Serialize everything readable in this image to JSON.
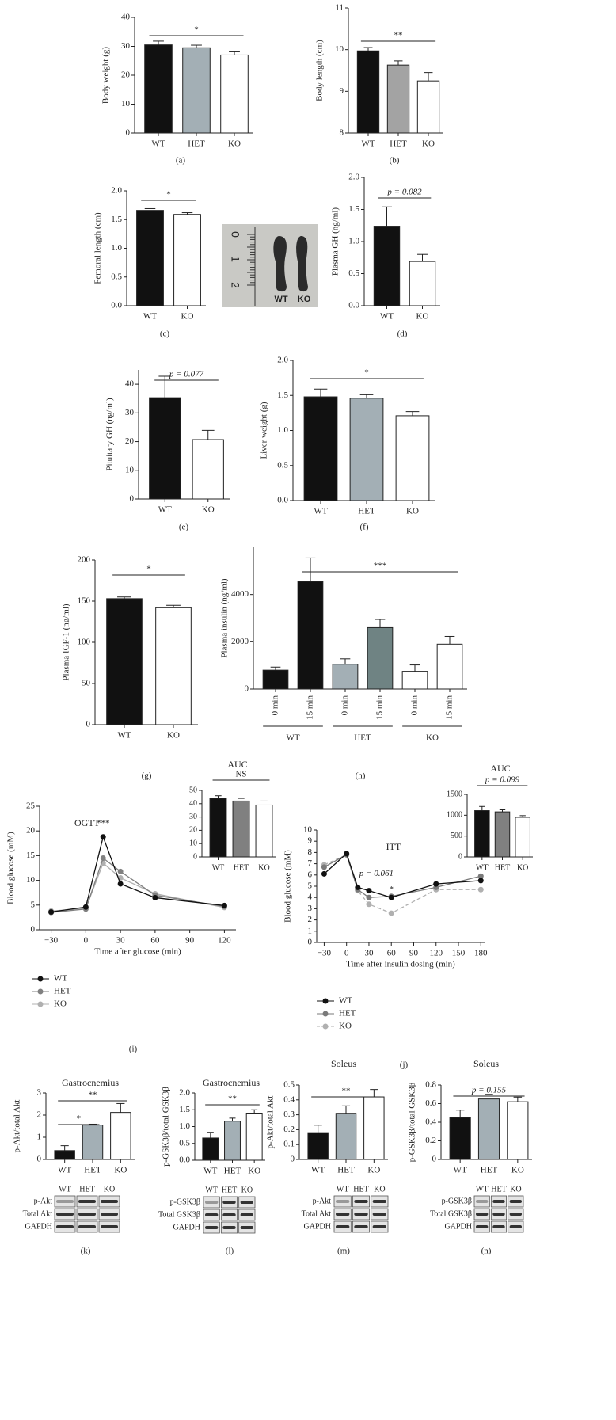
{
  "chart_data": [
    {
      "type": "bar",
      "panel_label": "(a)",
      "y_label": "Body weight (g)",
      "categories": [
        "WT",
        "HET",
        "KO"
      ],
      "values": [
        30.5,
        29.5,
        27
      ],
      "errors": [
        1.3,
        0.9,
        1.1
      ],
      "colors": [
        "#111111",
        "#a3afb5",
        "#ffffff"
      ],
      "ylim": [
        0,
        40
      ],
      "yticks": [
        0,
        10,
        20,
        30,
        40
      ],
      "annotations": [
        "*"
      ]
    },
    {
      "type": "bar",
      "panel_label": "(b)",
      "y_label": "Body length (cm)",
      "categories": [
        "WT",
        "HET",
        "KO"
      ],
      "values": [
        9.97,
        9.63,
        9.25
      ],
      "errors": [
        0.08,
        0.1,
        0.2
      ],
      "colors": [
        "#111111",
        "#a3a3a3",
        "#ffffff"
      ],
      "ylim": [
        8,
        11
      ],
      "yticks": [
        8,
        9,
        10,
        11
      ],
      "annotations": [
        "**"
      ]
    },
    {
      "type": "bar",
      "panel_label": "(c)",
      "y_label": "Femoral length (cm)",
      "categories": [
        "WT",
        "KO"
      ],
      "values": [
        1.66,
        1.59
      ],
      "errors": [
        0.03,
        0.03
      ],
      "colors": [
        "#111111",
        "#ffffff"
      ],
      "ylim": [
        0,
        2
      ],
      "yticks": [
        {
          "value": 0,
          "label": "0.0"
        },
        0.5,
        {
          "value": 1,
          "label": "1.0"
        },
        1.5,
        {
          "value": 2,
          "label": "2.0"
        }
      ],
      "annotations": [
        "*"
      ]
    },
    {
      "type": "bar",
      "panel_label": "(d)",
      "y_label": "Plasma GH (ng/ml)",
      "categories": [
        "WT",
        "KO"
      ],
      "values": [
        1.24,
        0.69
      ],
      "errors": [
        0.3,
        0.11
      ],
      "colors": [
        "#111111",
        "#ffffff"
      ],
      "ylim": [
        0,
        2
      ],
      "yticks": [
        {
          "value": 0,
          "label": "0.0"
        },
        0.5,
        {
          "value": 1,
          "label": "1.0"
        },
        1.5,
        {
          "value": 2,
          "label": "2.0"
        }
      ],
      "annotations": [
        "p = 0.082"
      ]
    },
    {
      "type": "bar",
      "panel_label": "(e)",
      "y_label": "Pituitary GH (ng/ml)",
      "categories": [
        "WT",
        "KO"
      ],
      "values": [
        35.3,
        20.7
      ],
      "errors": [
        7.5,
        3.2
      ],
      "colors": [
        "#111111",
        "#ffffff"
      ],
      "ylim": [
        0,
        45
      ],
      "yticks": [
        0,
        10,
        20,
        30,
        40
      ],
      "annotations": [
        "p = 0.077"
      ]
    },
    {
      "type": "bar",
      "panel_label": "(f)",
      "y_label": "Liver weight (g)",
      "categories": [
        "WT",
        "HET",
        "KO"
      ],
      "values": [
        1.48,
        1.46,
        1.21
      ],
      "errors": [
        0.11,
        0.05,
        0.06
      ],
      "colors": [
        "#111111",
        "#a3afb5",
        "#ffffff"
      ],
      "ylim": [
        0,
        2
      ],
      "yticks": [
        {
          "value": 0,
          "label": "0.0"
        },
        0.5,
        {
          "value": 1,
          "label": "1.0"
        },
        1.5,
        {
          "value": 2,
          "label": "2.0"
        }
      ],
      "annotations": [
        "*"
      ]
    },
    {
      "type": "bar",
      "panel_label": "(g)",
      "y_label": "Plasma IGF-1 (ng/ml)",
      "categories": [
        "WT",
        "KO"
      ],
      "values": [
        153,
        142
      ],
      "errors": [
        2,
        3
      ],
      "colors": [
        "#111111",
        "#ffffff"
      ],
      "ylim": [
        0,
        200
      ],
      "yticks": [
        0,
        50,
        100,
        150,
        200
      ],
      "annotations": [
        "*"
      ]
    },
    {
      "type": "bar",
      "panel_label": "(h)",
      "y_label": "Plasma insulin (ng/ml)",
      "categories": [
        "0 min",
        "15 min",
        "0 min",
        "15 min",
        "0 min",
        "15 min"
      ],
      "groups": [
        "WT",
        "HET",
        "KO"
      ],
      "values": [
        800,
        4550,
        1050,
        2600,
        750,
        1900
      ],
      "errors": [
        130,
        1000,
        230,
        350,
        270,
        330
      ],
      "colors": [
        "#111111",
        "#111111",
        "#a3afb5",
        "#6f8383",
        "#ffffff",
        "#ffffff"
      ],
      "ylim": [
        0,
        6000
      ],
      "yticks": [
        0,
        2000,
        4000
      ],
      "annotations": [
        "***"
      ]
    },
    {
      "type": "line",
      "panel_label": "(i)",
      "title": "OGTT",
      "x_label": "Time after glucose (min)",
      "y_label": "Blood glucose (mM)",
      "x": [
        -30,
        0,
        15,
        30,
        60,
        120
      ],
      "xlim": [
        -40,
        130
      ],
      "xticks": [
        {
          "value": -30,
          "label": "−30"
        },
        0,
        30,
        60,
        90,
        120
      ],
      "ylim": [
        0,
        25
      ],
      "yticks": [
        0,
        5,
        10,
        15,
        20,
        25
      ],
      "series": [
        {
          "name": "WT",
          "color": "#111111",
          "values": [
            3.6,
            4.6,
            18.8,
            9.3,
            6.5,
            4.9
          ]
        },
        {
          "name": "HET",
          "color": "#808080",
          "values": [
            3.5,
            4.2,
            14.5,
            11.8,
            7.0,
            4.7
          ]
        },
        {
          "name": "KO",
          "color": "#b0b0b0",
          "values": [
            3.8,
            4.3,
            13.5,
            10.5,
            7.3,
            4.5
          ]
        }
      ],
      "annotations": [
        "***"
      ]
    },
    {
      "type": "bar",
      "title": "AUC",
      "categories": [
        "WT",
        "HET",
        "KO"
      ],
      "values": [
        44,
        42,
        39
      ],
      "errors": [
        2,
        2,
        3
      ],
      "colors": [
        "#111111",
        "#808080",
        "#ffffff"
      ],
      "ylim": [
        0,
        50
      ],
      "yticks": [
        0,
        10,
        20,
        30,
        40,
        50
      ],
      "annotations": [
        "NS"
      ]
    },
    {
      "type": "line",
      "panel_label": "(j)",
      "title": "ITT",
      "x_label": "Time after insulin dosing (min)",
      "y_label": "Blood glucose (mM)",
      "x": [
        -30,
        0,
        15,
        30,
        60,
        120,
        180
      ],
      "xlim": [
        -40,
        185
      ],
      "xticks": [
        {
          "value": -30,
          "label": "−30"
        },
        0,
        30,
        60,
        90,
        120,
        150,
        180
      ],
      "ylim": [
        0,
        10
      ],
      "yticks": [
        0,
        1,
        2,
        3,
        4,
        5,
        6,
        7,
        8,
        9,
        10
      ],
      "series": [
        {
          "name": "WT",
          "color": "#111111",
          "values": [
            6.1,
            7.9,
            4.9,
            4.6,
            4.0,
            5.2,
            5.5
          ]
        },
        {
          "name": "HET",
          "color": "#7a7a7a",
          "values": [
            6.7,
            7.8,
            4.7,
            4.0,
            4.1,
            4.9,
            5.9
          ]
        },
        {
          "name": "KO",
          "color": "#b0b0b0",
          "line_style": "dashed",
          "values": [
            6.9,
            7.8,
            4.6,
            3.4,
            2.6,
            4.7,
            4.7
          ]
        }
      ],
      "annotations": [
        "p = 0.061",
        "*"
      ]
    },
    {
      "type": "bar",
      "title": "AUC",
      "categories": [
        "WT",
        "HET",
        "KO"
      ],
      "values": [
        1110,
        1080,
        950
      ],
      "errors": [
        100,
        50,
        40
      ],
      "colors": [
        "#111111",
        "#808080",
        "#ffffff"
      ],
      "ylim": [
        0,
        1500
      ],
      "yticks": [
        0,
        500,
        1000,
        1500
      ],
      "annotations": [
        "p = 0.099"
      ]
    },
    {
      "type": "bar",
      "panel_label": "(k)",
      "title": "Gastrocnemius",
      "y_label": "p-Akt/total Akt",
      "categories": [
        "WT",
        "HET",
        "KO"
      ],
      "values": [
        0.4,
        1.55,
        2.12
      ],
      "errors": [
        0.22,
        0.04,
        0.4
      ],
      "colors": [
        "#111111",
        "#a3afb5",
        "#ffffff"
      ],
      "ylim": [
        0,
        3
      ],
      "yticks": [
        0,
        1,
        2,
        3
      ],
      "annotations": [
        "*",
        "**"
      ],
      "blot": {
        "lanes": [
          "WT",
          "HET",
          "KO"
        ],
        "rows": [
          "p-Akt",
          "Total Akt",
          "GAPDH"
        ]
      }
    },
    {
      "type": "bar",
      "panel_label": "(l)",
      "title": "Gastrocnemius",
      "y_label": "p-GSK3β/total GSK3β",
      "categories": [
        "WT",
        "HET",
        "KO"
      ],
      "values": [
        0.66,
        1.16,
        1.4
      ],
      "errors": [
        0.17,
        0.09,
        0.1
      ],
      "colors": [
        "#111111",
        "#a3afb5",
        "#ffffff"
      ],
      "ylim": [
        0,
        2
      ],
      "yticks": [
        {
          "value": 0,
          "label": "0.0"
        },
        0.5,
        {
          "value": 1,
          "label": "1.0"
        },
        1.5,
        {
          "value": 2,
          "label": "2.0"
        }
      ],
      "annotations": [
        "**"
      ],
      "blot": {
        "lanes": [
          "WT",
          "HET",
          "KO"
        ],
        "rows": [
          "p-GSK3β",
          "Total GSK3β",
          "GAPDH"
        ]
      }
    },
    {
      "type": "bar",
      "panel_label": "(m)",
      "title": "Soleus",
      "y_label": "p-Akt/total Akt",
      "categories": [
        "WT",
        "HET",
        "KO"
      ],
      "values": [
        0.18,
        0.31,
        0.42
      ],
      "errors": [
        0.05,
        0.05,
        0.05
      ],
      "colors": [
        "#111111",
        "#a3afb5",
        "#ffffff"
      ],
      "ylim": [
        0,
        0.5
      ],
      "yticks": [
        0,
        0.1,
        0.2,
        0.3,
        0.4,
        0.5
      ],
      "annotations": [
        "**"
      ],
      "blot": {
        "lanes": [
          "WT",
          "HET",
          "KO"
        ],
        "rows": [
          "p-Akt",
          "Total Akt",
          "GAPDH"
        ]
      }
    },
    {
      "type": "bar",
      "panel_label": "(n)",
      "title": "Soleus",
      "y_label": "p-GSK3β/total GSK3β",
      "categories": [
        "WT",
        "HET",
        "KO"
      ],
      "values": [
        0.45,
        0.65,
        0.62
      ],
      "errors": [
        0.08,
        0.05,
        0.05
      ],
      "colors": [
        "#111111",
        "#a3afb5",
        "#ffffff"
      ],
      "ylim": [
        0,
        0.8
      ],
      "yticks": [
        0,
        0.2,
        0.4,
        0.6,
        0.8
      ],
      "annotations": [
        "p = 0.155"
      ],
      "blot": {
        "lanes": [
          "WT",
          "HET",
          "KO"
        ],
        "rows": [
          "p-GSK3β",
          "Total GSK3β",
          "GAPDH"
        ]
      }
    }
  ],
  "photo": {
    "ruler": [
      "0",
      "1",
      "2"
    ],
    "labels": [
      "WT",
      "KO"
    ]
  }
}
